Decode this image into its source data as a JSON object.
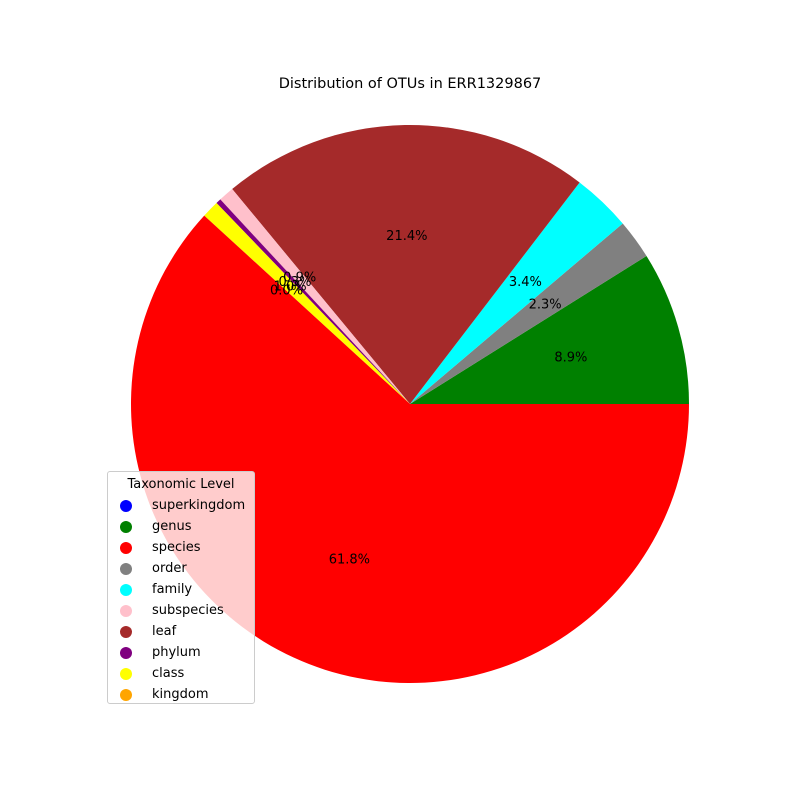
{
  "chart_data": {
    "type": "pie",
    "title": "Distribution of OTUs in ERR1329867",
    "legend_title": "Taxonomic Level",
    "legend_placement": "lower-left",
    "slices": [
      {
        "label": "superkingdom",
        "value": 0.0,
        "pct_label": "",
        "color": "#0000ff"
      },
      {
        "label": "genus",
        "value": 8.9,
        "pct_label": "8.9%",
        "color": "#008000"
      },
      {
        "label": "order",
        "value": 2.3,
        "pct_label": "2.3%",
        "color": "#808080"
      },
      {
        "label": "family",
        "value": 3.4,
        "pct_label": "3.4%",
        "color": "#00ffff"
      },
      {
        "label": "leaf",
        "value": 21.4,
        "pct_label": "21.4%",
        "color": "#a52a2a"
      },
      {
        "label": "subspecies",
        "value": 0.9,
        "pct_label": "0.9%",
        "color": "#ffc0cb"
      },
      {
        "label": "phylum",
        "value": 0.3,
        "pct_label": "0.3%",
        "color": "#800080"
      },
      {
        "label": "class",
        "value": 1.0,
        "pct_label": "1.0%",
        "color": "#ffff00"
      },
      {
        "label": "kingdom",
        "value": 0.0,
        "pct_label": "0.0%",
        "color": "#ffa500"
      },
      {
        "label": "species",
        "value": 61.8,
        "pct_label": "61.8%",
        "color": "#ff0000"
      }
    ],
    "legend": [
      {
        "label": "superkingdom",
        "color": "#0000ff"
      },
      {
        "label": "genus",
        "color": "#008000"
      },
      {
        "label": "species",
        "color": "#ff0000"
      },
      {
        "label": "order",
        "color": "#808080"
      },
      {
        "label": "family",
        "color": "#00ffff"
      },
      {
        "label": "subspecies",
        "color": "#ffc0cb"
      },
      {
        "label": "leaf",
        "color": "#a52a2a"
      },
      {
        "label": "phylum",
        "color": "#800080"
      },
      {
        "label": "class",
        "color": "#ffff00"
      },
      {
        "label": "kingdom",
        "color": "#ffa500"
      }
    ]
  }
}
